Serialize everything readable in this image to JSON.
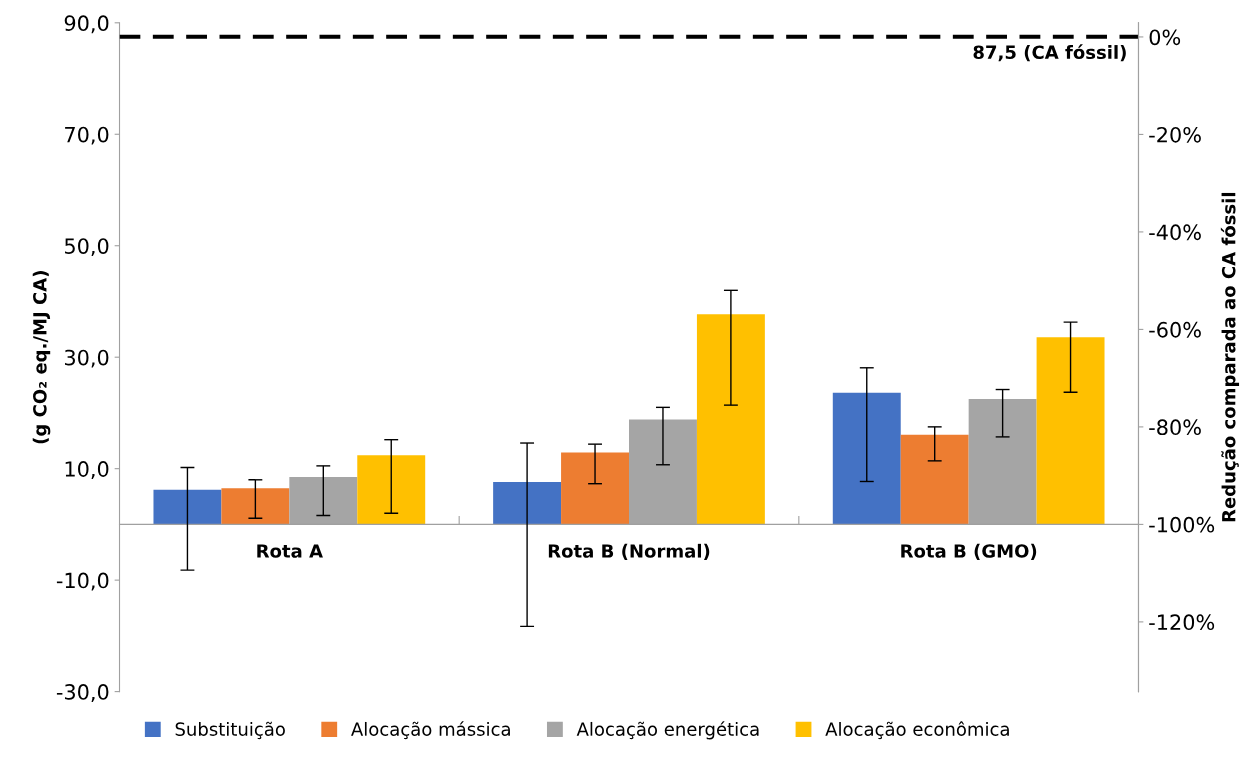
{
  "chart_data": {
    "type": "bar",
    "ylabel": "(g CO₂ eq./MJ CA)",
    "y2label": "Redução comparada ao CA fóssil",
    "categories": [
      "Rota A",
      "Rota B (Normal)",
      "Rota B (GMO)"
    ],
    "series": [
      {
        "name": "Substituição",
        "color": "#4472c4",
        "values": [
          6.2,
          7.6,
          23.6
        ],
        "errors": [
          [
            -8.2,
            10.2
          ],
          [
            -18.3,
            14.6
          ],
          [
            7.7,
            28.1
          ]
        ]
      },
      {
        "name": "Alocação mássica",
        "color": "#ed7d31",
        "values": [
          6.5,
          12.9,
          16.1
        ],
        "errors": [
          [
            1.1,
            8.0
          ],
          [
            7.3,
            14.4
          ],
          [
            11.4,
            17.5
          ]
        ]
      },
      {
        "name": "Alocação energética",
        "color": "#a5a5a5",
        "values": [
          8.5,
          18.8,
          22.5
        ],
        "errors": [
          [
            1.6,
            10.5
          ],
          [
            10.7,
            21.0
          ],
          [
            15.7,
            24.2
          ]
        ]
      },
      {
        "name": "Alocação econômica",
        "color": "#ffc000",
        "values": [
          12.4,
          37.7,
          33.6
        ],
        "errors": [
          [
            2.0,
            15.2
          ],
          [
            21.4,
            42.0
          ],
          [
            23.7,
            36.3
          ]
        ]
      }
    ],
    "ylim": [
      -30,
      90
    ],
    "yticks": [
      {
        "value": -30,
        "label": "-30,0"
      },
      {
        "value": -10,
        "label": "-10,0"
      },
      {
        "value": 10,
        "label": "10,0"
      },
      {
        "value": 30,
        "label": "30,0"
      },
      {
        "value": 50,
        "label": "50,0"
      },
      {
        "value": 70,
        "label": "70,0"
      },
      {
        "value": 90,
        "label": "90,0"
      }
    ],
    "y2lim": [
      -134.3,
      2.9
    ],
    "y2ticks": [
      {
        "value": 0,
        "label": "0%"
      },
      {
        "value": -20,
        "label": "-20%"
      },
      {
        "value": -40,
        "label": "-40%"
      },
      {
        "value": -60,
        "label": "-60%"
      },
      {
        "value": -80,
        "label": "-80%"
      },
      {
        "value": -100,
        "label": "-100%"
      },
      {
        "value": -120,
        "label": "-120%"
      }
    ],
    "ref_lines": [
      {
        "axis": "y",
        "value": 87.5,
        "label": "87,5 (CA fóssil)",
        "color": "#000000",
        "line_style": "dashed"
      }
    ],
    "grid": false,
    "legend": "bottom"
  }
}
